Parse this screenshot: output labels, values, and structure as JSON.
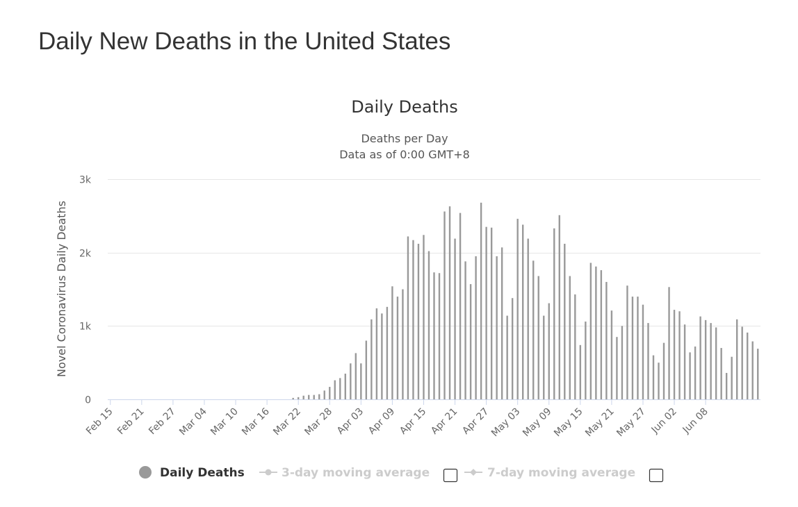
{
  "page": {
    "title": "Daily New Deaths in the United States"
  },
  "colors": {
    "bar": "#999999",
    "grid": "#e6e6e6",
    "axis": "#ccd6eb",
    "legend_active": "#333333",
    "legend_inactive": "#cccccc"
  },
  "chart_data": {
    "type": "bar",
    "title": "Daily Deaths",
    "subtitle": [
      "Deaths per Day",
      "Data as of 0:00 GMT+8"
    ],
    "ylabel": "Novel Coronavirus Daily Deaths",
    "xlabel": "",
    "ylim": [
      0,
      3000
    ],
    "yticks": [
      {
        "value": 0,
        "label": "0"
      },
      {
        "value": 1000,
        "label": "1k"
      },
      {
        "value": 2000,
        "label": "2k"
      },
      {
        "value": 3000,
        "label": "3k"
      }
    ],
    "xtick_labels": [
      "Feb 15",
      "Feb 21",
      "Feb 27",
      "Mar 04",
      "Mar 10",
      "Mar 16",
      "Mar 22",
      "Mar 28",
      "Apr 03",
      "Apr 09",
      "Apr 15",
      "Apr 21",
      "Apr 27",
      "May 03",
      "May 09",
      "May 15",
      "May 21",
      "May 27",
      "Jun 02",
      "Jun 08"
    ],
    "xtick_step": 6,
    "series": [
      {
        "name": "Daily Deaths",
        "values": [
          0,
          0,
          0,
          0,
          0,
          0,
          0,
          0,
          0,
          0,
          0,
          0,
          0,
          0,
          0,
          0,
          0,
          0,
          0,
          0,
          0,
          0,
          0,
          0,
          0,
          0,
          0,
          0,
          0,
          0,
          0,
          0,
          0,
          0,
          0,
          20,
          30,
          50,
          60,
          60,
          70,
          120,
          170,
          260,
          290,
          350,
          490,
          630,
          490,
          800,
          1090,
          1240,
          1170,
          1260,
          1540,
          1400,
          1500,
          2220,
          2170,
          2120,
          2240,
          2020,
          1730,
          1720,
          2560,
          2630,
          2190,
          2540,
          1880,
          1570,
          1950,
          2680,
          2350,
          2340,
          1950,
          2070,
          1140,
          1380,
          2460,
          2380,
          2190,
          1890,
          1680,
          1140,
          1310,
          2330,
          2510,
          2120,
          1680,
          1430,
          740,
          1060,
          1860,
          1810,
          1760,
          1600,
          1210,
          850,
          1000,
          1550,
          1400,
          1400,
          1290,
          1040,
          600,
          500,
          770,
          1530,
          1220,
          1200,
          1020,
          640,
          720,
          1130,
          1080,
          1040,
          980,
          700,
          360,
          580,
          1090,
          990,
          910,
          790,
          690
        ]
      }
    ],
    "legend": [
      {
        "label": "Daily Deaths",
        "active": true
      },
      {
        "label": "3-day moving average",
        "active": false
      },
      {
        "label": "7-day moving average",
        "active": false
      }
    ]
  }
}
